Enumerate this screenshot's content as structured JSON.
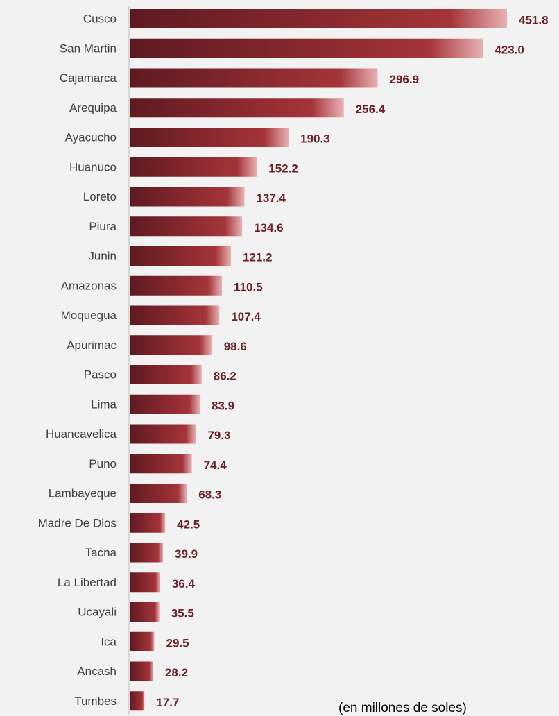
{
  "chart_data": {
    "type": "bar",
    "orientation": "horizontal",
    "categories": [
      "Cusco",
      "San Martin",
      "Cajamarca",
      "Arequipa",
      "Ayacucho",
      "Huanuco",
      "Loreto",
      "Piura",
      "Junin",
      "Amazonas",
      "Moquegua",
      "Apurimac",
      "Pasco",
      "Lima",
      "Huancavelica",
      "Puno",
      "Lambayeque",
      "Madre De Dios",
      "Tacna",
      "La Libertad",
      "Ucayali",
      "Ica",
      "Ancash",
      "Tumbes"
    ],
    "values": [
      451.8,
      423.0,
      296.9,
      256.4,
      190.3,
      152.2,
      137.4,
      134.6,
      121.2,
      110.5,
      107.4,
      98.6,
      86.2,
      83.9,
      79.3,
      74.4,
      68.3,
      42.5,
      39.9,
      36.4,
      35.5,
      29.5,
      28.2,
      17.7
    ],
    "value_labels": [
      "451.8",
      "423.0",
      "296.9",
      "256.4",
      "190.3",
      "152.2",
      "137.4",
      "134.6",
      "121.2",
      "110.5",
      "107.4",
      "98.6",
      "86.2",
      "83.9",
      "79.3",
      "74.4",
      "68.3",
      "42.5",
      "39.9",
      "36.4",
      "35.5",
      "29.5",
      "28.2",
      "17.7"
    ],
    "xlim": [
      0,
      451.8
    ],
    "grid": false,
    "note": "(en millones de soles)",
    "colors": {
      "bar_dark": "#5e1a20",
      "bar_mid": "#8c2a30",
      "bar_bright": "#a4353a",
      "bar_light": "#e8b2b4",
      "value_text": "#6b1f24",
      "category_text": "#404040",
      "axis_line": "#bfbfbf",
      "background": "#f3f2f2"
    }
  }
}
